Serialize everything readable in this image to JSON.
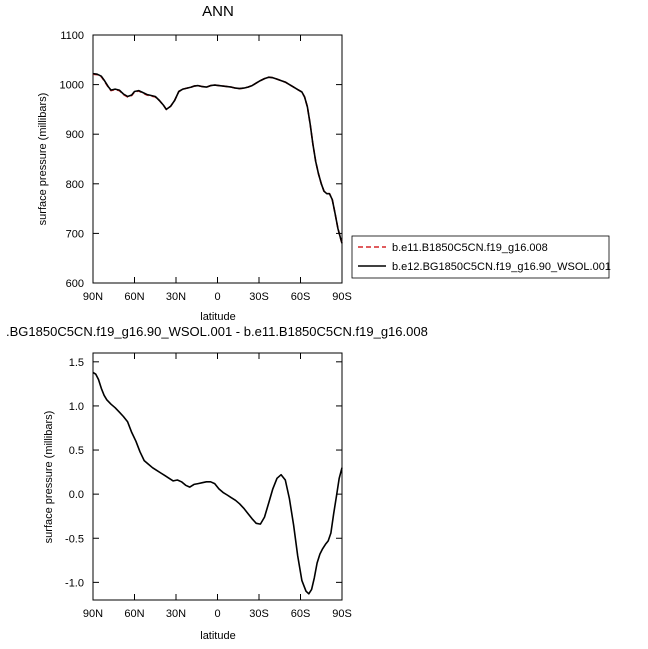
{
  "chart_data": [
    {
      "type": "line",
      "title": "ANN",
      "xlabel": "latitude",
      "ylabel": "surface pressure (millibars)",
      "xlim": [
        90,
        -90
      ],
      "ylim": [
        600,
        1100
      ],
      "xticks": [
        90,
        60,
        30,
        0,
        -30,
        -60,
        -90
      ],
      "xtick_labels": [
        "90N",
        "60N",
        "30N",
        "0",
        "30S",
        "60S",
        "90S"
      ],
      "yticks": [
        600,
        700,
        800,
        900,
        1000,
        1100
      ],
      "ytick_labels": [
        "600",
        "700",
        "800",
        "900",
        "1000",
        "1100"
      ],
      "legend_position": "right",
      "legend": [
        {
          "label": "b.e11.B1850C5CN.f19_g16.008",
          "color": "#d62728",
          "style": "dashed"
        },
        {
          "label": "b.e12.BG1850C5CN.f19_g16.90_WSOL.001",
          "color": "#000000",
          "style": "solid"
        }
      ],
      "series": [
        {
          "name": "b.e11.B1850C5CN.f19_g16.008",
          "color": "#d62728",
          "style": "dashed",
          "x": [
            90,
            87,
            84,
            82,
            79,
            77,
            74,
            71,
            68,
            65,
            62,
            60,
            57,
            54,
            51,
            48,
            45,
            42,
            39,
            37,
            34,
            31,
            28,
            25,
            22,
            19,
            17,
            14,
            11,
            8,
            5,
            2,
            -1,
            -4,
            -7,
            -10,
            -13,
            -16,
            -19,
            -22,
            -25,
            -28,
            -31,
            -34,
            -37,
            -40,
            -43,
            -46,
            -49,
            -52,
            -55,
            -58,
            -61,
            -63,
            -65,
            -67,
            -69,
            -71,
            -73,
            -75,
            -77,
            -79,
            -81,
            -83,
            -85,
            -87,
            -89,
            -90
          ],
          "y": [
            1021,
            1020,
            1016,
            1008,
            995,
            988,
            990,
            988,
            980,
            975,
            978,
            985,
            987,
            983,
            979,
            977,
            975,
            968,
            958,
            950,
            956,
            968,
            986,
            991,
            993,
            995,
            997,
            998,
            996,
            995,
            998,
            999,
            998,
            997,
            996,
            995,
            993,
            992,
            993,
            995,
            998,
            1003,
            1008,
            1012,
            1015,
            1014,
            1011,
            1008,
            1005,
            1000,
            995,
            990,
            985,
            975,
            955,
            920,
            880,
            845,
            820,
            800,
            785,
            780,
            780,
            768,
            740,
            710,
            690,
            680
          ]
        },
        {
          "name": "b.e12.BG1850C5CN.f19_g16.90_WSOL.001",
          "color": "#000000",
          "style": "solid",
          "x": [
            90,
            87,
            84,
            82,
            79,
            77,
            74,
            71,
            68,
            65,
            62,
            60,
            57,
            54,
            51,
            48,
            45,
            42,
            39,
            37,
            34,
            31,
            28,
            25,
            22,
            19,
            17,
            14,
            11,
            8,
            5,
            2,
            -1,
            -4,
            -7,
            -10,
            -13,
            -16,
            -19,
            -22,
            -25,
            -28,
            -31,
            -34,
            -37,
            -40,
            -43,
            -46,
            -49,
            -52,
            -55,
            -58,
            -61,
            -63,
            -65,
            -67,
            -69,
            -71,
            -73,
            -75,
            -77,
            -79,
            -81,
            -83,
            -85,
            -87,
            -89,
            -90
          ],
          "y": [
            1022,
            1021,
            1017,
            1009,
            996,
            989,
            991,
            989,
            981,
            976,
            979,
            986,
            988,
            984,
            980,
            978,
            976,
            968,
            958,
            950,
            956,
            968,
            986,
            991,
            993,
            995,
            997,
            998,
            996,
            995,
            998,
            999,
            998,
            997,
            996,
            995,
            993,
            992,
            993,
            995,
            998,
            1003,
            1008,
            1012,
            1015,
            1014,
            1011,
            1008,
            1005,
            1000,
            995,
            990,
            985,
            975,
            955,
            920,
            880,
            845,
            820,
            800,
            785,
            780,
            780,
            768,
            740,
            710,
            690,
            680
          ]
        }
      ]
    },
    {
      "type": "line",
      "title": ".BG1850C5CN.f19_g16.90_WSOL.001 - b.e11.B1850C5CN.f19_g16.008",
      "xlabel": "latitude",
      "ylabel": "surface pressure (millibars)",
      "xlim": [
        90,
        -90
      ],
      "ylim": [
        -1.2,
        1.6
      ],
      "xticks": [
        90,
        60,
        30,
        0,
        -30,
        -60,
        -90
      ],
      "xtick_labels": [
        "90N",
        "60N",
        "30N",
        "0",
        "30S",
        "60S",
        "90S"
      ],
      "yticks": [
        -1.0,
        -0.5,
        0.0,
        0.5,
        1.0,
        1.5
      ],
      "ytick_labels": [
        "-1.0",
        "-0.5",
        "0.0",
        "0.5",
        "1.0",
        "1.5"
      ],
      "series": [
        {
          "color": "#000000",
          "style": "solid",
          "x": [
            90,
            88,
            86,
            84,
            82,
            80,
            77,
            74,
            71,
            68,
            65,
            62,
            59,
            56,
            53,
            50,
            47,
            44,
            41,
            38,
            35,
            32,
            29,
            26,
            23,
            20,
            17,
            14,
            11,
            8,
            5,
            2,
            -1,
            -4,
            -7,
            -10,
            -13,
            -16,
            -19,
            -22,
            -25,
            -28,
            -31,
            -34,
            -37,
            -40,
            -43,
            -46,
            -49,
            -52,
            -55,
            -58,
            -61,
            -64,
            -66,
            -68,
            -70,
            -72,
            -74,
            -76,
            -78,
            -80,
            -82,
            -84,
            -86,
            -88,
            -90
          ],
          "y": [
            1.38,
            1.36,
            1.3,
            1.2,
            1.12,
            1.07,
            1.02,
            0.98,
            0.93,
            0.88,
            0.82,
            0.7,
            0.6,
            0.48,
            0.38,
            0.34,
            0.3,
            0.27,
            0.24,
            0.21,
            0.18,
            0.15,
            0.16,
            0.14,
            0.1,
            0.08,
            0.11,
            0.12,
            0.13,
            0.14,
            0.14,
            0.12,
            0.06,
            0.02,
            -0.01,
            -0.04,
            -0.07,
            -0.11,
            -0.16,
            -0.22,
            -0.28,
            -0.33,
            -0.34,
            -0.26,
            -0.1,
            0.06,
            0.18,
            0.22,
            0.16,
            -0.05,
            -0.35,
            -0.7,
            -0.98,
            -1.1,
            -1.13,
            -1.08,
            -0.95,
            -0.78,
            -0.68,
            -0.62,
            -0.57,
            -0.53,
            -0.44,
            -0.22,
            -0.02,
            0.18,
            0.3
          ]
        }
      ]
    }
  ]
}
